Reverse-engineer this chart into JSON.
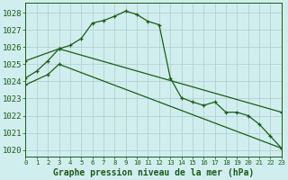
{
  "line_main": {
    "x": [
      0,
      1,
      2,
      3,
      4,
      5,
      6,
      7,
      8,
      9,
      10,
      11,
      12,
      13,
      14,
      15,
      16,
      17,
      18,
      19,
      20,
      21,
      22,
      23
    ],
    "y": [
      1024.2,
      1024.6,
      1025.2,
      1025.9,
      1026.1,
      1026.5,
      1027.4,
      1027.55,
      1027.8,
      1028.1,
      1027.9,
      1027.5,
      1027.3,
      1024.2,
      1023.05,
      1022.8,
      1022.6,
      1022.8,
      1022.2,
      1022.2,
      1022.0,
      1021.5,
      1020.8,
      1020.1
    ]
  },
  "line_upper": {
    "x": [
      0,
      3,
      23
    ],
    "y": [
      1025.2,
      1025.9,
      1022.2
    ]
  },
  "line_lower": {
    "x": [
      0,
      2,
      3,
      23
    ],
    "y": [
      1023.8,
      1024.4,
      1025.0,
      1020.1
    ]
  },
  "background_color": "#d0eeed",
  "grid_color": "#b0cccc",
  "line_color": "#1a5c1a",
  "ylabel_values": [
    1020,
    1021,
    1022,
    1023,
    1024,
    1025,
    1026,
    1027,
    1028
  ],
  "xlabel": "Graphe pression niveau de la mer (hPa)",
  "xlim": [
    0,
    23
  ],
  "ylim": [
    1019.6,
    1028.6
  ]
}
